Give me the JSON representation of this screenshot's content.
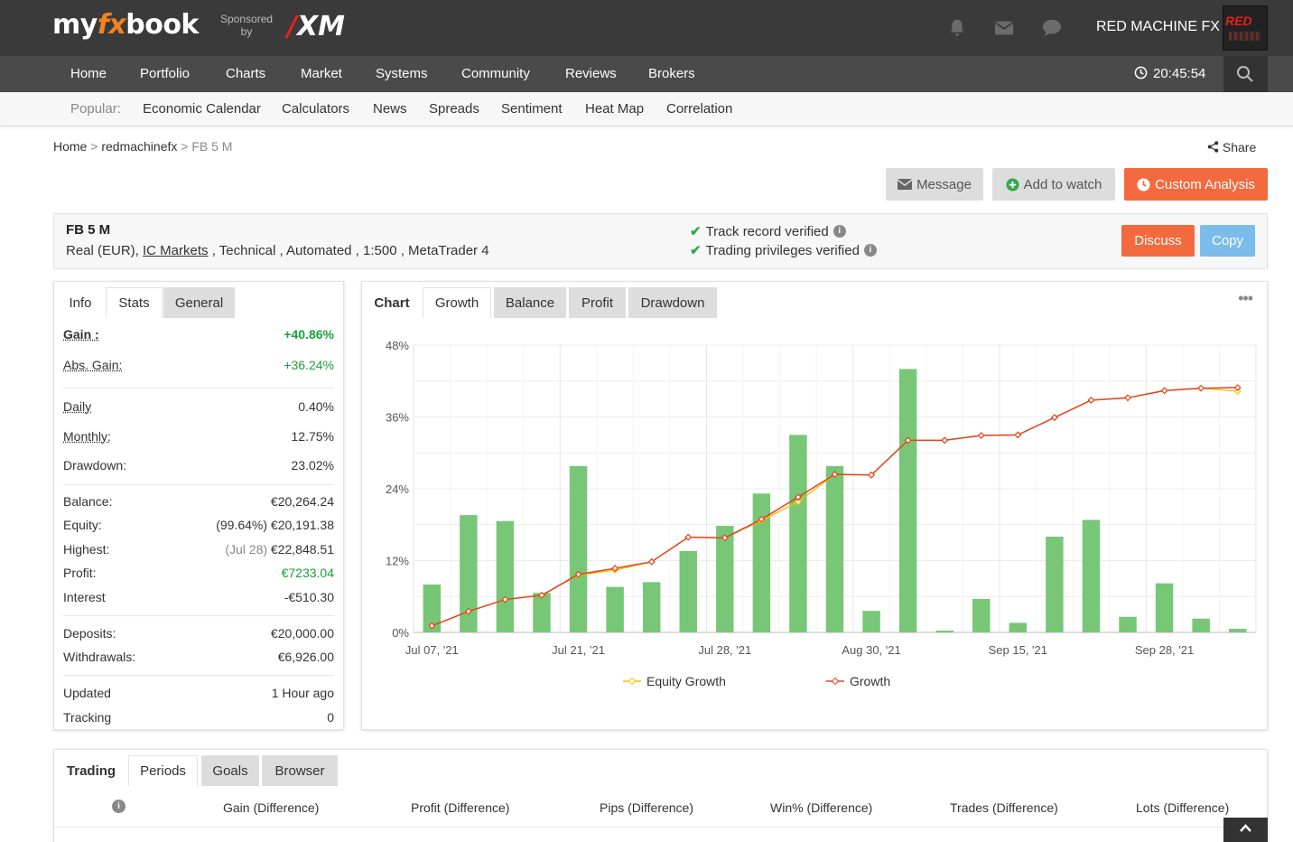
{
  "brand": {
    "logo_pre": "my",
    "logo_fx": "fx",
    "logo_post": "book",
    "sponsored_1": "Sponsored",
    "sponsored_2": "by",
    "sponsor": "XM",
    "sponsor_slash": "/"
  },
  "user": {
    "name": "RED MACHINE FX",
    "avatar_text": "RED"
  },
  "nav": {
    "items": [
      "Home",
      "Portfolio",
      "Charts",
      "Market",
      "Systems",
      "Community",
      "Reviews",
      "Brokers"
    ],
    "clock": "20:45:54"
  },
  "subnav": {
    "label": "Popular:",
    "items": [
      "Economic Calendar",
      "Calculators",
      "News",
      "Spreads",
      "Sentiment",
      "Heat Map",
      "Correlation"
    ]
  },
  "breadcrumb": {
    "home": "Home",
    "user": "redmachinefx",
    "current": "FB 5 M",
    "sep": ">"
  },
  "actions": {
    "share": "Share",
    "message": "Message",
    "watch": "Add to watch",
    "custom": "Custom Analysis",
    "discuss": "Discuss",
    "copy": "Copy"
  },
  "system": {
    "name": "FB 5 M",
    "desc_pre": "Real (EUR), ",
    "broker": "IC Markets",
    "desc_post": " , Technical , Automated , 1:500 , MetaTrader 4",
    "verif_track": "Track record verified",
    "verif_trading": "Trading privileges verified",
    "info_glyph": "i"
  },
  "stats": {
    "tabs": [
      "Info",
      "Stats",
      "General"
    ],
    "gain_label": "Gain :",
    "gain": "+40.86%",
    "absgain_label": "Abs. Gain:",
    "absgain": "+36.24%",
    "daily_label": "Daily",
    "daily": "0.40%",
    "monthly_label": "Monthly:",
    "monthly": "12.75%",
    "drawdown_label": "Drawdown:",
    "drawdown": "23.02%",
    "balance_label": "Balance:",
    "balance": "€20,264.24",
    "equity_label": "Equity:",
    "equity_pct": "(99.64%)",
    "equity": "€20,191.38",
    "highest_label": "Highest:",
    "highest_date": "(Jul 28)",
    "highest": "€22,848.51",
    "profit_label": "Profit:",
    "profit": "€7233.04",
    "interest_label": "Interest",
    "interest": "-€510.30",
    "deposits_label": "Deposits:",
    "deposits": "€20,000.00",
    "withdrawals_label": "Withdrawals:",
    "withdrawals": "€6,926.00",
    "updated_label": "Updated",
    "updated": "1 Hour ago",
    "tracking_label": "Tracking",
    "tracking": "0"
  },
  "chart_panel": {
    "tabs": [
      "Chart",
      "Growth",
      "Balance",
      "Profit",
      "Drawdown"
    ],
    "menu": "•••"
  },
  "chart_data": {
    "type": "bar",
    "y_ticks": [
      "48%",
      "36%",
      "24%",
      "12%",
      "0%"
    ],
    "x_ticks": [
      "Jul 07, '21",
      "Jul 21, '21",
      "Jul 28, '21",
      "Aug 30, '21",
      "Sep 15, '21",
      "Sep 28, '21"
    ],
    "ylim": [
      0,
      48
    ],
    "grid": true,
    "legend_position": "bottom",
    "bars": [
      8.0,
      19.6,
      18.6,
      6.6,
      27.8,
      7.6,
      8.4,
      13.6,
      17.8,
      23.2,
      33.0,
      27.8,
      3.6,
      44.0,
      0.3,
      5.6,
      1.6,
      16.0,
      18.8,
      2.6,
      8.2,
      2.3,
      0.6
    ],
    "series": [
      {
        "name": "Equity Growth",
        "color": "#f5c200",
        "values": [
          1.1,
          3.5,
          5.5,
          6.2,
          9.6,
          10.4,
          11.8,
          15.9,
          15.8,
          18.7,
          21.8,
          26.4,
          26.3,
          32.1,
          32.1,
          32.9,
          33.0,
          35.9,
          38.8,
          39.2,
          40.4,
          40.8,
          40.3
        ]
      },
      {
        "name": "Growth",
        "color": "#e2431f",
        "values": [
          1.1,
          3.5,
          5.5,
          6.2,
          9.7,
          10.7,
          11.8,
          15.9,
          15.8,
          18.9,
          22.6,
          26.4,
          26.3,
          32.1,
          32.1,
          32.9,
          33.0,
          35.9,
          38.8,
          39.2,
          40.4,
          40.8,
          40.9
        ]
      }
    ],
    "bar_color": "#77c776"
  },
  "bottom": {
    "tabs": [
      "Trading",
      "Periods",
      "Goals",
      "Browser"
    ],
    "info_glyph": "i",
    "columns": [
      "Gain (Difference)",
      "Profit (Difference)",
      "Pips (Difference)",
      "Win% (Difference)",
      "Trades (Difference)",
      "Lots (Difference)"
    ]
  }
}
